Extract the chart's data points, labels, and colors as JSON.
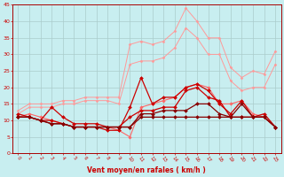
{
  "x": [
    0,
    1,
    2,
    3,
    4,
    5,
    6,
    7,
    8,
    9,
    10,
    11,
    12,
    13,
    14,
    15,
    16,
    17,
    18,
    19,
    20,
    21,
    22,
    23
  ],
  "series": [
    {
      "color": "#FF9999",
      "linewidth": 0.7,
      "marker": "D",
      "markersize": 1.5,
      "y": [
        13,
        15,
        15,
        15,
        16,
        16,
        17,
        17,
        17,
        17,
        33,
        34,
        33,
        34,
        37,
        44,
        40,
        35,
        35,
        26,
        23,
        25,
        24,
        31
      ]
    },
    {
      "color": "#FF9999",
      "linewidth": 0.7,
      "marker": "D",
      "markersize": 1.5,
      "y": [
        12,
        14,
        14,
        14,
        15,
        15,
        16,
        16,
        16,
        15,
        27,
        28,
        28,
        29,
        32,
        38,
        35,
        30,
        30,
        22,
        19,
        20,
        20,
        27
      ]
    },
    {
      "color": "#FF6666",
      "linewidth": 0.8,
      "marker": "D",
      "markersize": 1.8,
      "y": [
        11,
        12,
        11,
        10,
        9,
        8,
        8,
        8,
        8,
        7,
        5,
        14,
        15,
        16,
        17,
        20,
        21,
        20,
        15,
        15,
        16,
        12,
        11,
        8
      ]
    },
    {
      "color": "#CC0000",
      "linewidth": 0.9,
      "marker": "D",
      "markersize": 2.0,
      "y": [
        12,
        11,
        10,
        10,
        9,
        8,
        8,
        8,
        7,
        7,
        14,
        23,
        15,
        17,
        17,
        20,
        21,
        19,
        15,
        12,
        16,
        11,
        12,
        8
      ]
    },
    {
      "color": "#CC0000",
      "linewidth": 0.9,
      "marker": "D",
      "markersize": 2.0,
      "y": [
        11,
        11,
        10,
        14,
        11,
        9,
        9,
        9,
        8,
        8,
        11,
        13,
        13,
        14,
        14,
        19,
        20,
        17,
        16,
        11,
        11,
        11,
        11,
        8
      ]
    },
    {
      "color": "#880000",
      "linewidth": 0.9,
      "marker": "D",
      "markersize": 2.0,
      "y": [
        11,
        11,
        10,
        9,
        9,
        8,
        8,
        8,
        8,
        8,
        8,
        12,
        12,
        13,
        13,
        13,
        15,
        15,
        12,
        11,
        15,
        11,
        11,
        8
      ]
    },
    {
      "color": "#880000",
      "linewidth": 0.9,
      "marker": "D",
      "markersize": 2.0,
      "y": [
        11,
        11,
        10,
        9,
        9,
        8,
        8,
        8,
        8,
        8,
        8,
        11,
        11,
        11,
        11,
        11,
        11,
        11,
        11,
        11,
        11,
        11,
        11,
        8
      ]
    }
  ],
  "xlabel": "Vent moyen/en rafales ( km/h )",
  "xlim": [
    -0.5,
    23.5
  ],
  "ylim": [
    0,
    45
  ],
  "yticks": [
    0,
    5,
    10,
    15,
    20,
    25,
    30,
    35,
    40,
    45
  ],
  "xticks": [
    0,
    1,
    2,
    3,
    4,
    5,
    6,
    7,
    8,
    9,
    10,
    11,
    12,
    13,
    14,
    15,
    16,
    17,
    18,
    19,
    20,
    21,
    22,
    23
  ],
  "bg_color": "#C8EEF0",
  "grid_color": "#AACCCC"
}
